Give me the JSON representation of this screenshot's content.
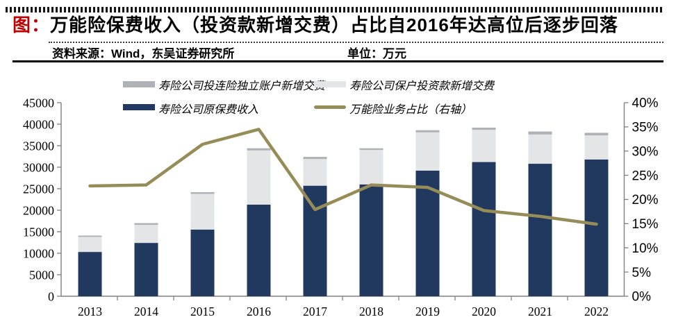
{
  "header": {
    "tag": "图：",
    "title": "万能险保费收入（投资款新增交费）占比自2016年达高位后逐步回落",
    "source": "资料来源：Wind，东吴证券研究所",
    "unit": "单位：万元"
  },
  "colors": {
    "tag_red": "#C00000",
    "navy": "#21395E",
    "light_gray": "#E3E5E6",
    "mid_gray": "#AEB2B6",
    "olive": "#968C58",
    "axis": "#808080"
  },
  "legend": [
    {
      "label": "寿险公司投连险独立账户新增交费",
      "swatch": "mid_gray",
      "kind": "bar"
    },
    {
      "label": "寿险公司保户投资款新增交费",
      "swatch": "light_gray",
      "kind": "bar"
    },
    {
      "label": "寿险公司原保费收入",
      "swatch": "navy",
      "kind": "bar"
    },
    {
      "label": "万能险业务占比（右轴）",
      "swatch": "olive",
      "kind": "line"
    }
  ],
  "chart_data": {
    "type": "bar",
    "subtype": "stacked-bar-with-line",
    "title": "万能险保费收入（投资款新增交费）占比自2016年达高位后逐步回落",
    "unit": "万元",
    "categories": [
      "2013",
      "2014",
      "2015",
      "2016",
      "2017",
      "2018",
      "2019",
      "2020",
      "2021",
      "2022"
    ],
    "series": [
      {
        "name": "寿险公司原保费收入",
        "type": "bar",
        "stack": 1,
        "color": "navy",
        "values": [
          10300,
          12400,
          15500,
          21300,
          25700,
          26000,
          29200,
          31200,
          30800,
          31800
        ]
      },
      {
        "name": "寿险公司保户投资款新增交费",
        "type": "bar",
        "stack": 1,
        "color": "light_gray",
        "values": [
          3500,
          4200,
          8300,
          12600,
          6200,
          8000,
          8900,
          7500,
          6800,
          5600
        ]
      },
      {
        "name": "寿险公司投连险独立账户新增交费",
        "type": "bar",
        "stack": 1,
        "color": "mid_gray",
        "values": [
          300,
          400,
          400,
          500,
          500,
          400,
          500,
          500,
          700,
          600
        ]
      },
      {
        "name": "万能险业务占比（右轴）",
        "type": "line",
        "axis": "right",
        "color": "olive",
        "values": [
          22.8,
          23.0,
          31.4,
          34.5,
          17.9,
          23.0,
          22.5,
          17.7,
          16.5,
          14.9
        ]
      }
    ],
    "left_axis": {
      "min": 0,
      "max": 45000,
      "step": 5000,
      "tick_labels": [
        "0",
        "5000",
        "10000",
        "15000",
        "20000",
        "25000",
        "30000",
        "35000",
        "40000",
        "45000"
      ]
    },
    "right_axis": {
      "min": 0,
      "max": 40,
      "step": 5,
      "tick_labels": [
        "0%",
        "5%",
        "10%",
        "15%",
        "20%",
        "25%",
        "30%",
        "35%",
        "40%"
      ]
    },
    "grid": false,
    "legend_position": "top"
  }
}
